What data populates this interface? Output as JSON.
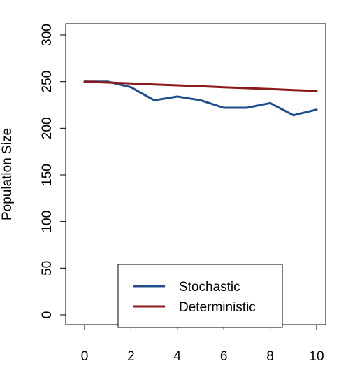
{
  "chart_data": {
    "type": "line",
    "title": "",
    "xlabel": "",
    "ylabel": "Population Size",
    "xlim": [
      0,
      10
    ],
    "ylim": [
      0,
      300
    ],
    "xticks": [
      0,
      2,
      4,
      6,
      8,
      10
    ],
    "yticks": [
      0,
      50,
      100,
      150,
      200,
      250,
      300
    ],
    "grid": false,
    "legend_position": "bottom-center",
    "x": [
      0,
      1,
      2,
      3,
      4,
      5,
      6,
      7,
      8,
      9,
      10
    ],
    "series": [
      {
        "name": "Stochastic",
        "color": "#1f4e8c",
        "values": [
          250,
          250,
          244,
          230,
          234,
          230,
          222,
          222,
          227,
          214,
          220
        ]
      },
      {
        "name": "Deterministic",
        "color": "#8b1a1a",
        "values": [
          250,
          249,
          248,
          247,
          246,
          245,
          244,
          243,
          242,
          241,
          240
        ]
      }
    ]
  }
}
